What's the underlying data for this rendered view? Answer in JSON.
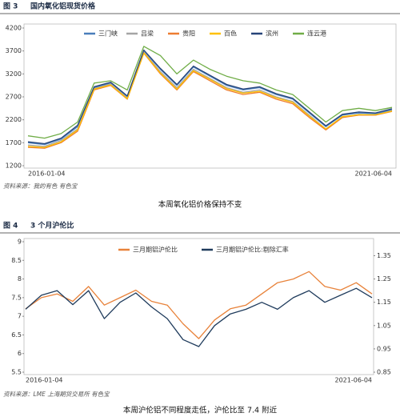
{
  "chart_data": [
    {
      "type": "line",
      "figure_label": "图 3",
      "title": "国内氧化铝现货价格",
      "categories": [
        "2016-01-04",
        null,
        null,
        null,
        null,
        null,
        null,
        null,
        null,
        null,
        null,
        null,
        null,
        null,
        null,
        null,
        null,
        null,
        null,
        null,
        null,
        null,
        "2021-06-04"
      ],
      "ylim": [
        1200,
        4200
      ],
      "yticks": [
        1200,
        1700,
        2200,
        2700,
        3200,
        3700,
        4200
      ],
      "series": [
        {
          "name": "三门峡",
          "color": "#4a7ebb",
          "values": [
            1700,
            1660,
            1780,
            2050,
            2900,
            3000,
            2700,
            3700,
            3300,
            2950,
            3350,
            3150,
            2950,
            2850,
            2900,
            2750,
            2650,
            2350,
            2050,
            2300,
            2350,
            2330,
            2420
          ]
        },
        {
          "name": "吕梁",
          "color": "#a5a5a5",
          "values": [
            1650,
            1620,
            1750,
            2000,
            2880,
            2980,
            2680,
            3680,
            3250,
            2900,
            3300,
            3100,
            2900,
            2800,
            2850,
            2700,
            2600,
            2300,
            2000,
            2250,
            2320,
            2300,
            2400
          ]
        },
        {
          "name": "贵阳",
          "color": "#ed7d31",
          "values": [
            1600,
            1580,
            1700,
            1950,
            2850,
            2950,
            2650,
            3650,
            3200,
            2850,
            3250,
            3050,
            2850,
            2750,
            2800,
            2650,
            2550,
            2250,
            1980,
            2250,
            2300,
            2300,
            2380
          ]
        },
        {
          "name": "百色",
          "color": "#ffc000",
          "values": [
            1620,
            1600,
            1720,
            1980,
            2870,
            2960,
            2660,
            3660,
            3220,
            2870,
            3270,
            3080,
            2880,
            2780,
            2820,
            2680,
            2580,
            2280,
            2000,
            2270,
            2310,
            2310,
            2390
          ]
        },
        {
          "name": "滨州",
          "color": "#264478",
          "values": [
            1720,
            1680,
            1800,
            2080,
            2920,
            3020,
            2720,
            3720,
            3320,
            2970,
            3370,
            3170,
            2970,
            2870,
            2920,
            2770,
            2670,
            2370,
            2070,
            2320,
            2370,
            2350,
            2440
          ]
        },
        {
          "name": "连云港",
          "color": "#70ad47",
          "values": [
            1850,
            1800,
            1900,
            2150,
            3000,
            3050,
            2850,
            3800,
            3600,
            3200,
            3500,
            3300,
            3150,
            3050,
            3000,
            2850,
            2750,
            2450,
            2150,
            2400,
            2450,
            2400,
            2470
          ]
        }
      ],
      "legend": "top",
      "source": "资料来源：我的有色  有色宝",
      "caption": "本周氧化铝价格保持不变"
    },
    {
      "type": "line",
      "figure_label": "图 4",
      "title": "3 个月沪伦比",
      "categories": [
        "2016-01-04",
        null,
        null,
        null,
        null,
        null,
        null,
        null,
        null,
        null,
        null,
        null,
        null,
        null,
        null,
        null,
        null,
        null,
        null,
        null,
        null,
        null,
        "2021-06-04"
      ],
      "ylim": [
        5.5,
        9
      ],
      "yticks": [
        9,
        8.5,
        8,
        7.5,
        7,
        6.5,
        6,
        5.5
      ],
      "y2lim": [
        0.85,
        1.41
      ],
      "y2ticks": [
        1.35,
        1.25,
        1.15,
        1.05,
        0.95,
        0.85
      ],
      "series": [
        {
          "name": "三月期铝沪伦比",
          "color": "#e8823a",
          "values": [
            7.2,
            7.5,
            7.6,
            7.4,
            7.8,
            7.3,
            7.5,
            7.7,
            7.4,
            7.3,
            6.8,
            6.4,
            6.9,
            7.2,
            7.3,
            7.6,
            7.9,
            8.0,
            8.2,
            7.8,
            7.7,
            7.9,
            7.6
          ]
        },
        {
          "name": "三月期铝沪伦比:剔除汇率",
          "color": "#1f3b5c",
          "axis": "y2",
          "values": [
            1.12,
            1.18,
            1.2,
            1.14,
            1.2,
            1.08,
            1.15,
            1.19,
            1.13,
            1.08,
            0.99,
            0.96,
            1.05,
            1.1,
            1.12,
            1.15,
            1.12,
            1.17,
            1.2,
            1.15,
            1.18,
            1.21,
            1.17
          ]
        }
      ],
      "legend": "top",
      "source": "资料来源：LME  上海期货交易所  有色宝",
      "caption": "本周沪伦铝不同程度走低，沪伦比至 7.4 附近"
    }
  ]
}
